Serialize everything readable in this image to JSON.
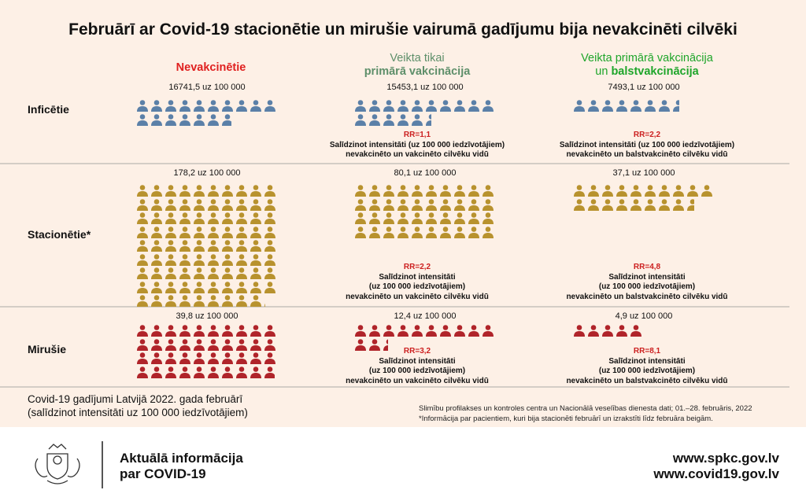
{
  "title": "Februārī ar Covid-19 stacionētie un mirušie vairumā gadījumu bija nevakcinēti cilvēki",
  "columns": [
    {
      "line1": "Nevakcinētie",
      "line2": "",
      "color": "#e0201f"
    },
    {
      "line1": "Veikta tikai",
      "line2": "primārā vakcinācija",
      "color": "#5e8f6a"
    },
    {
      "line1": "Veikta primārā vakcinācija",
      "line2_pre": "un ",
      "line2": "balstvakcinācija",
      "color": "#1ea52a"
    }
  ],
  "chart_data": {
    "type": "pictogram",
    "unit_label": "uz 100 000",
    "rows": [
      {
        "label": "Inficētie",
        "color": "#5b80a8",
        "per_icon": 1000,
        "values": [
          16741.5,
          15453.1,
          7493.1
        ],
        "stats": [
          "16741,5 uz 100 000",
          "15453,1 uz 100 000",
          "7493,1 uz 100 000"
        ],
        "rr": [
          null,
          "RR=1,1",
          "RR=2,2"
        ]
      },
      {
        "label": "Stacionētie*",
        "color": "#b8922e",
        "per_icon": 2,
        "values": [
          178.2,
          80.1,
          37.1
        ],
        "stats": [
          "178,2 uz 100 000",
          "80,1 uz 100 000",
          "37,1 uz 100 000"
        ],
        "rr": [
          null,
          "RR=2,2",
          "RR=4,8"
        ]
      },
      {
        "label": "Mirušie",
        "color": "#b0242a",
        "per_icon": 1,
        "values": [
          39.8,
          12.4,
          4.9
        ],
        "stats": [
          "39,8 uz 100 000",
          "12,4 uz 100 000",
          "4,9 uz 100 000"
        ],
        "rr": [
          null,
          "RR=3,2",
          "RR=8,1"
        ]
      }
    ]
  },
  "rr_text": {
    "inf_col2": [
      "Salīdzinot intensitāti (uz 100 000 iedzīvotājiem)",
      "nevakcinēto un vakcinēto cilvēku vidū"
    ],
    "inf_col3": [
      "Salīdzinot intensitāti (uz 100 000 iedzīvotājiem)",
      "nevakcinēto un balstvakcinēto cilvēku vidū"
    ],
    "col2": [
      "Salīdzinot intensitāti",
      "(uz 100 000 iedzīvotājiem)",
      "nevakcinēto un vakcinēto cilvēku vidū"
    ],
    "col3": [
      "Salīdzinot intensitāti",
      "(uz 100 000 iedzīvotājiem)",
      "nevakcinēto un balstvakcinēto cilvēku vidū"
    ]
  },
  "caption": [
    "Covid-19 gadījumi Latvijā 2022. gada februārī",
    "(salīdzinot intensitāti uz 100 000 iedzīvotājiem)"
  ],
  "source": [
    "Slimību profilakses un kontroles centra un Nacionālā veselības dienesta dati; 01.–28. februāris, 2022",
    "*Informācija par pacientiem, kuri bija stacionēti februārī un izrakstīti līdz februāra beigām."
  ],
  "footer": {
    "line1": "Aktuālā informācija",
    "line2": "par COVID-19",
    "url1": "www.spkc.gov.lv",
    "url2": "www.covid19.gov.lv",
    "logo": "Latvia coat of arms"
  }
}
